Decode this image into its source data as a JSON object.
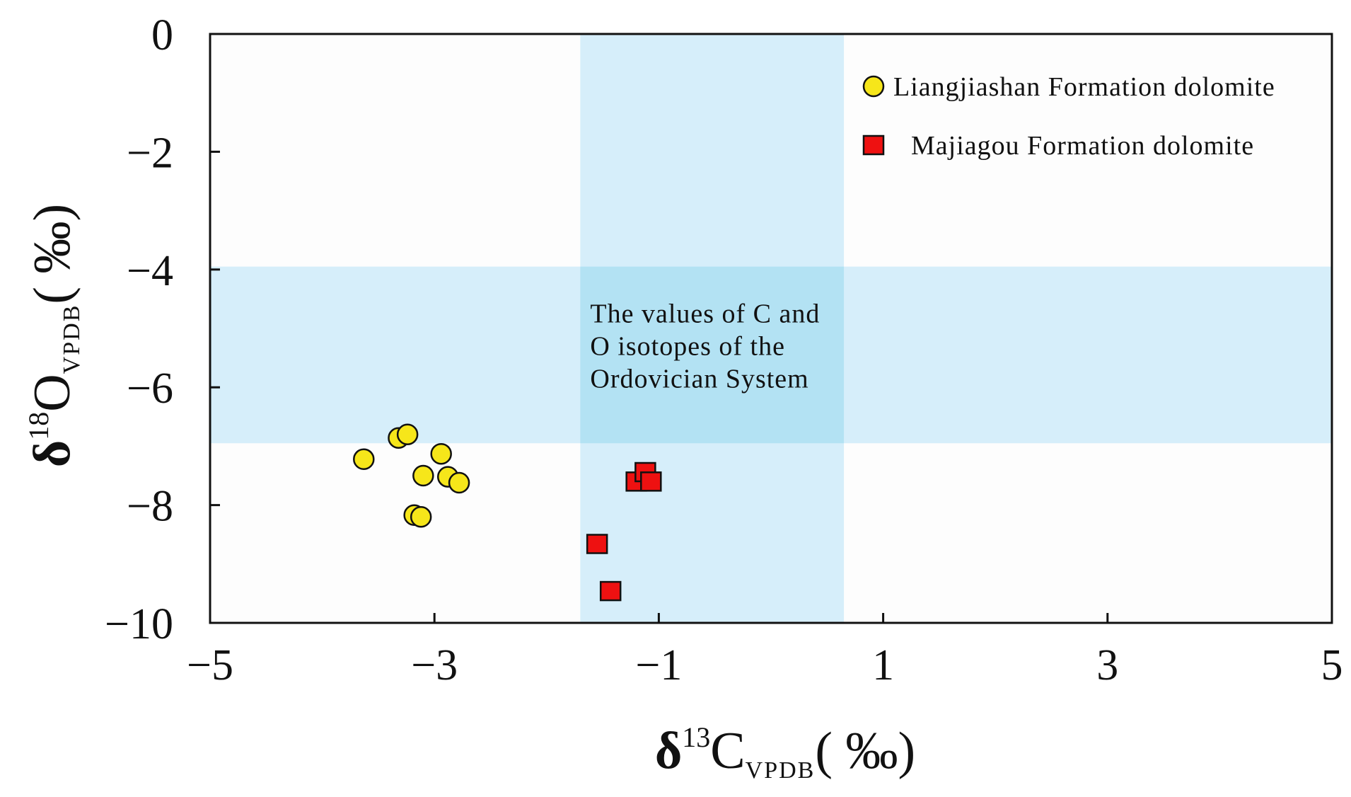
{
  "chart_data": {
    "type": "scatter",
    "title": "",
    "xlabel": {
      "prefix": "δ",
      "sup": "13",
      "main": "C",
      "sub": "VPDB",
      "unit": "( ‰)"
    },
    "ylabel": {
      "prefix": "δ",
      "sup": "18",
      "main": "O",
      "sub": "VPDB",
      "unit": "( ‰)"
    },
    "xlim": [
      -5,
      5
    ],
    "ylim": [
      -10,
      0
    ],
    "xticks": [
      -5,
      -3,
      -1,
      1,
      3,
      5
    ],
    "xtick_labels": [
      "−5",
      "−3",
      "−1",
      "1",
      "3",
      "5"
    ],
    "yticks": [
      0,
      -2,
      -4,
      -6,
      -8,
      -10
    ],
    "ytick_labels": [
      "0",
      "−2",
      "−4",
      "−6",
      "−8",
      "−10"
    ],
    "grid": false,
    "legend_position": "top-right",
    "reference_bands": {
      "note_lines": [
        "The values of C and",
        "O isotopes of the",
        "Ordovician System"
      ],
      "x_range": [
        -1.7,
        0.65
      ],
      "y_range": [
        -6.95,
        -3.95
      ],
      "color": "#d6eefa",
      "overlap_color": "#b3e2f3"
    },
    "series": [
      {
        "name": "Liangjiashan Formation dolomite",
        "marker": "circle",
        "color": "#f6e61a",
        "points": [
          {
            "x": -3.63,
            "y": -7.22
          },
          {
            "x": -3.32,
            "y": -6.86
          },
          {
            "x": -3.24,
            "y": -6.8
          },
          {
            "x": -2.94,
            "y": -7.13
          },
          {
            "x": -3.1,
            "y": -7.5
          },
          {
            "x": -2.88,
            "y": -7.52
          },
          {
            "x": -2.78,
            "y": -7.62
          },
          {
            "x": -3.18,
            "y": -8.17
          },
          {
            "x": -3.12,
            "y": -8.2
          }
        ]
      },
      {
        "name": "Majiagou Formation dolomite",
        "marker": "square",
        "color": "#ee1111",
        "points": [
          {
            "x": -1.2,
            "y": -7.6
          },
          {
            "x": -1.12,
            "y": -7.44
          },
          {
            "x": -1.07,
            "y": -7.6
          },
          {
            "x": -1.55,
            "y": -8.66
          },
          {
            "x": -1.43,
            "y": -9.46
          }
        ]
      }
    ]
  }
}
